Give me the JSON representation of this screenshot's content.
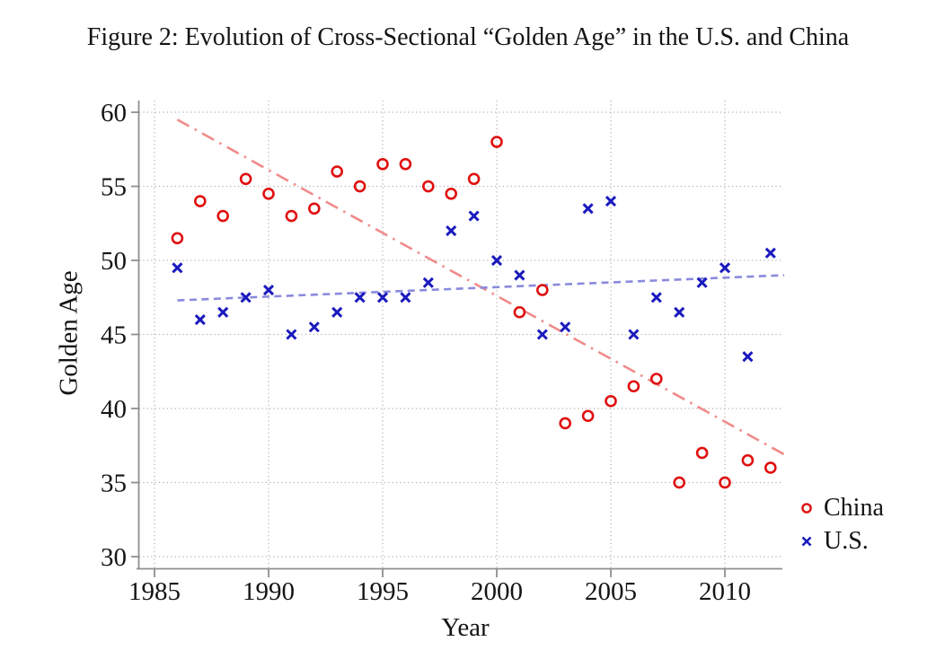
{
  "figure": {
    "title": "Figure 2: Evolution of Cross-Sectional “Golden Age” in the U.S. and China"
  },
  "axes": {
    "x_label": "Year",
    "y_label": "Golden Age",
    "x_ticks": [
      1985,
      1990,
      1995,
      2000,
      2005,
      2010
    ],
    "y_ticks": [
      30,
      35,
      40,
      45,
      50,
      55,
      60
    ]
  },
  "legend": {
    "position": "right-outside-bottom",
    "items": [
      {
        "label": "China",
        "marker": "circle",
        "color": "#e01010"
      },
      {
        "label": "U.S.",
        "marker": "x",
        "color": "#1a1abe"
      }
    ]
  },
  "colors": {
    "china_marker": "#e01010",
    "us_marker": "#1a1abe",
    "china_trend": "#f18a8a",
    "us_trend": "#8a8ade",
    "gridline": "#b0b0b0",
    "axis": "#8f8f8f",
    "text": "#141414"
  },
  "chart_data": {
    "type": "scatter",
    "title": "Figure 2: Evolution of Cross-Sectional “Golden Age” in the U.S. and China",
    "xlabel": "Year",
    "ylabel": "Golden Age",
    "xlim": [
      1984.33,
      2012.52
    ],
    "ylim": [
      29.21,
      60.79
    ],
    "grid": "dotted-both",
    "x": [
      1986,
      1987,
      1988,
      1989,
      1990,
      1991,
      1992,
      1993,
      1994,
      1995,
      1996,
      1997,
      1998,
      1999,
      2000,
      2001,
      2002,
      2003,
      2004,
      2005,
      2006,
      2007,
      2008,
      2009,
      2010,
      2011,
      2012
    ],
    "series": [
      {
        "name": "China",
        "marker": "circle",
        "color": "#e01010",
        "values": [
          51.5,
          54,
          53,
          55.5,
          54.5,
          53,
          53.5,
          56,
          55,
          56.5,
          56.5,
          55,
          54.5,
          55.5,
          58,
          46.5,
          48,
          39,
          39.5,
          40.5,
          41.5,
          42,
          35,
          37,
          35,
          36.5,
          36
        ]
      },
      {
        "name": "U.S.",
        "marker": "x",
        "color": "#1a1abe",
        "values": [
          49.5,
          46,
          46.5,
          47.5,
          48,
          45,
          45.5,
          46.5,
          47.5,
          47.5,
          47.5,
          48.5,
          52,
          53,
          50,
          49,
          45,
          45.5,
          53.5,
          54,
          45,
          47.5,
          46.5,
          48.5,
          49.5,
          43.5,
          50.5
        ]
      }
    ],
    "trend_lines": [
      {
        "series": "China",
        "style": "dash-dot",
        "color": "#f18a8a",
        "x1": 1986,
        "y1": 59.5,
        "x2": 2012.6,
        "y2": 36.9
      },
      {
        "series": "U.S.",
        "style": "dashed",
        "color": "#8a8ade",
        "x1": 1986,
        "y1": 47.3,
        "x2": 2012.6,
        "y2": 49.0
      }
    ]
  }
}
